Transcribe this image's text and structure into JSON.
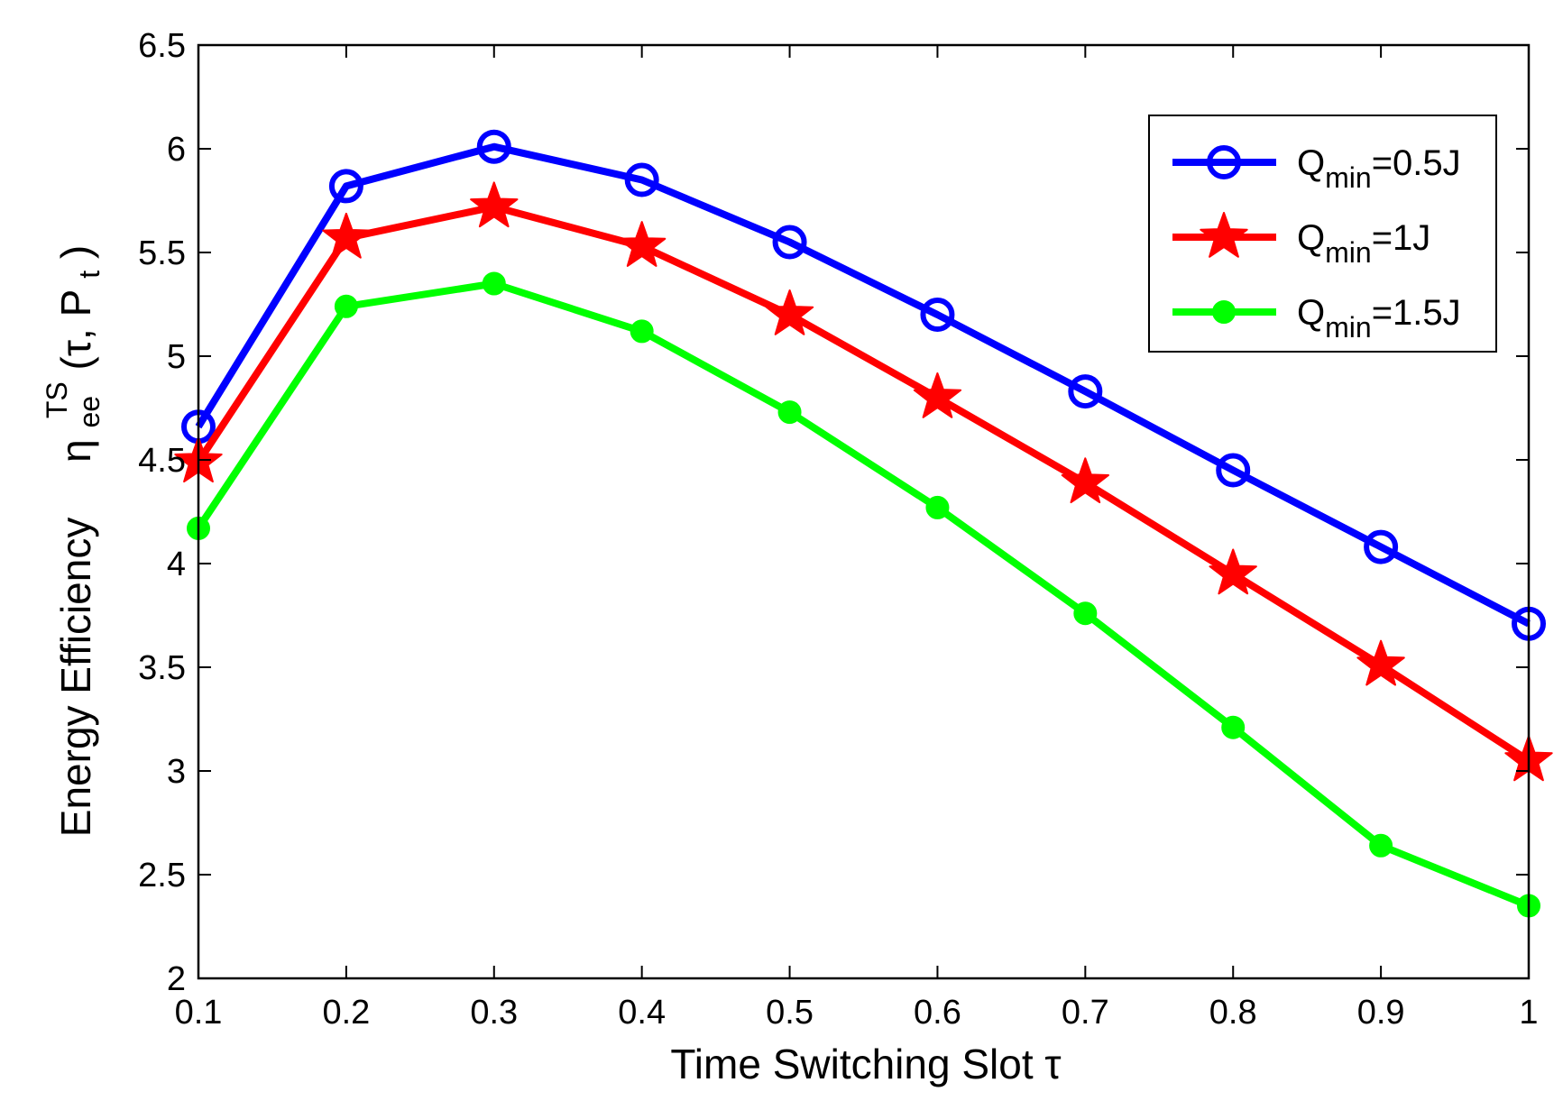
{
  "chart_data": {
    "type": "line",
    "xlabel": "Time Switching Slot τ",
    "ylabel": {
      "prefix": "Energy Efficiency",
      "symbol": "η",
      "sub": "ee",
      "sup": "TS",
      "args_open": "(τ, P",
      "args_sub": "t",
      "args_close": ")"
    },
    "x": [
      0.1,
      0.2,
      0.3,
      0.4,
      0.5,
      0.6,
      0.7,
      0.8,
      0.9,
      1
    ],
    "x_tick_labels": [
      "0.1",
      "0.2",
      "0.3",
      "0.4",
      "0.5",
      "0.6",
      "0.7",
      "0.8",
      "0.9",
      "1"
    ],
    "y_tick_labels": [
      "2",
      "2.5",
      "3",
      "3.5",
      "4",
      "4.5",
      "5",
      "5.5",
      "6",
      "6.5"
    ],
    "xlim": [
      0.1,
      1
    ],
    "ylim": [
      2,
      6.5
    ],
    "grid": false,
    "legend_position": "top-right",
    "series": [
      {
        "legend_main": "Q",
        "legend_sub": "min",
        "legend_suffix": "=0.5J",
        "color": "#0000ff",
        "marker": "circle-open",
        "values": [
          4.66,
          5.82,
          6.01,
          5.85,
          5.55,
          5.2,
          4.83,
          4.45,
          4.08,
          3.71
        ]
      },
      {
        "legend_main": "Q",
        "legend_sub": "min",
        "legend_suffix": "=1J",
        "color": "#ff0000",
        "marker": "star",
        "values": [
          4.49,
          5.57,
          5.72,
          5.53,
          5.2,
          4.8,
          4.39,
          3.95,
          3.51,
          3.05
        ]
      },
      {
        "legend_main": "Q",
        "legend_sub": "min",
        "legend_suffix": "=1.5J",
        "color": "#00ff00",
        "marker": "dot",
        "values": [
          4.17,
          5.24,
          5.35,
          5.12,
          4.73,
          4.27,
          3.76,
          3.21,
          2.64,
          2.35
        ]
      }
    ]
  }
}
